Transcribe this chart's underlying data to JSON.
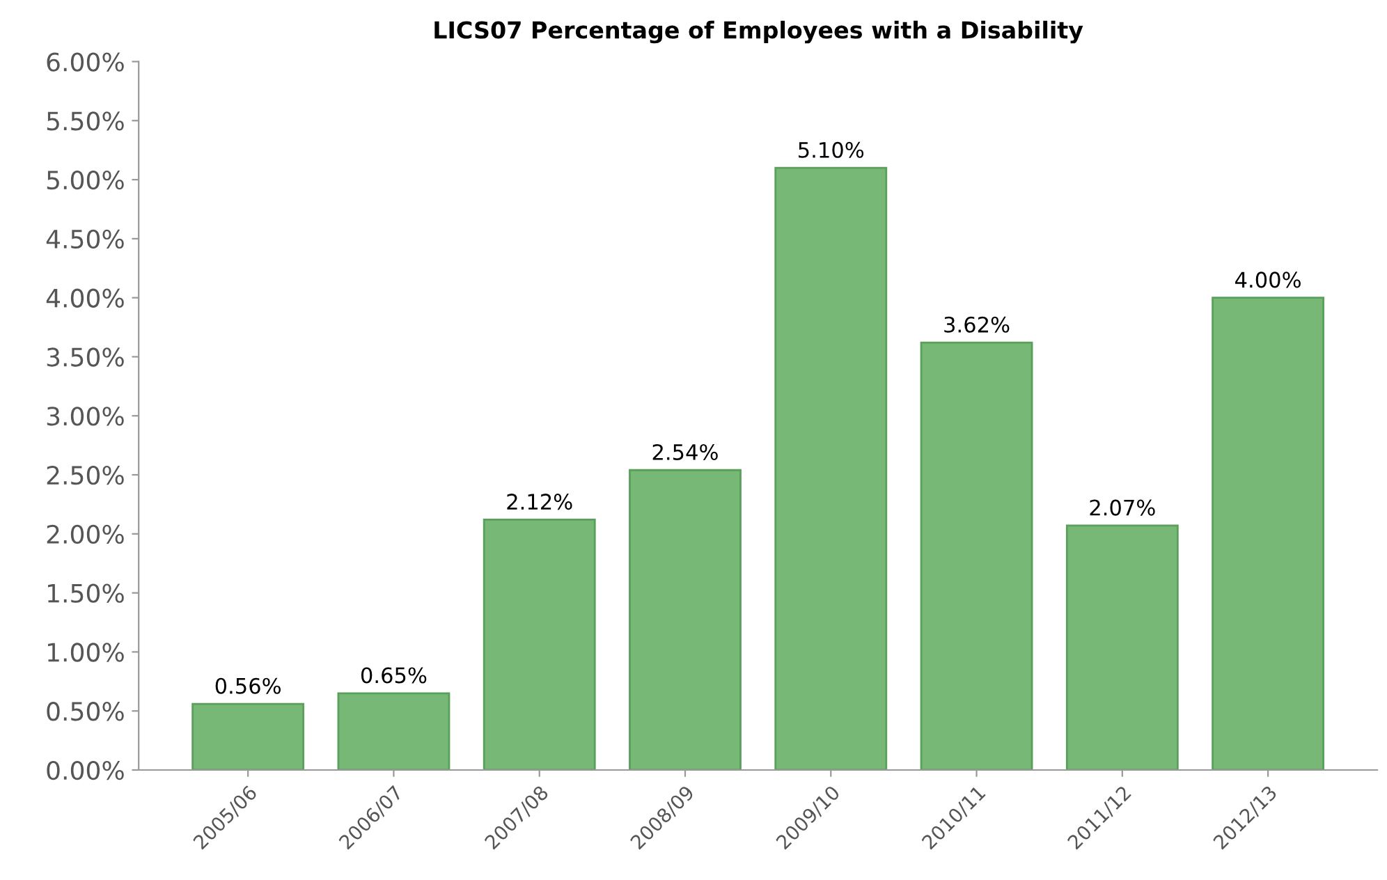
{
  "chart_data": {
    "type": "bar",
    "title": "LICS07 Percentage of Employees with a Disability",
    "categories": [
      "2005/06",
      "2006/07",
      "2007/08",
      "2008/09",
      "2009/10",
      "2010/11",
      "2011/12",
      "2012/13"
    ],
    "values": [
      0.56,
      0.65,
      2.12,
      2.54,
      5.1,
      3.62,
      2.07,
      4.0
    ],
    "value_labels": [
      "0.56%",
      "0.65%",
      "2.12%",
      "2.54%",
      "5.10%",
      "3.62%",
      "2.07%",
      "4.00%"
    ],
    "color": "#77b877",
    "ylim": [
      0,
      6
    ],
    "yticks": [
      {
        "value": 0,
        "label": "0.00%"
      },
      {
        "value": 0.5,
        "label": "0.50%"
      },
      {
        "value": 1,
        "label": "1.00%"
      },
      {
        "value": 1.5,
        "label": "1.50%"
      },
      {
        "value": 2,
        "label": "2.00%"
      },
      {
        "value": 2.5,
        "label": "2.50%"
      },
      {
        "value": 3,
        "label": "3.00%"
      },
      {
        "value": 3.5,
        "label": "3.50%"
      },
      {
        "value": 4,
        "label": "4.00%"
      },
      {
        "value": 4.5,
        "label": "4.50%"
      },
      {
        "value": 5,
        "label": "5.00%"
      },
      {
        "value": 5.5,
        "label": "5.50%"
      },
      {
        "value": 6,
        "label": "6.00%"
      }
    ],
    "grid": false
  }
}
